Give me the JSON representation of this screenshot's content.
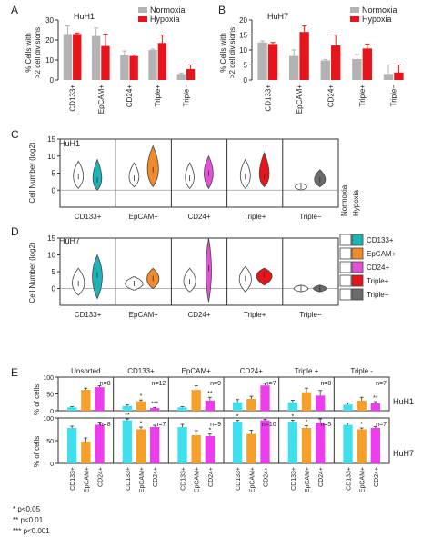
{
  "colors": {
    "normoxia": "#b3b3b3",
    "hypoxia": "#e8141b",
    "cd133": "#1fb3b5",
    "epcam": "#f08a2c",
    "cd24": "#e052d6",
    "triple_pos": "#e8141b",
    "triple_neg": "#6b6b6b",
    "cyan_bar": "#3fe0ee",
    "orange_bar": "#f6a02a",
    "magenta_bar": "#ee3dee"
  },
  "panels": {
    "A": {
      "letter": "A",
      "title": "HuH1",
      "ylabel_line1": "% Cells with",
      "ylabel_line2": ">2 cell divisions"
    },
    "B": {
      "letter": "B",
      "title": "HuH7",
      "ylabel_line1": "% Cells with",
      "ylabel_line2": ">2 cell divisions"
    },
    "C": {
      "letter": "C",
      "title": "HuH1",
      "ylabel": "Cell Number (log2)"
    },
    "D": {
      "letter": "D",
      "title": "HuH7",
      "ylabel": "Cell Number (log2)"
    },
    "E": {
      "letter": "E",
      "ylabel": "% of cells",
      "row_labels": [
        "HuH1",
        "HuH7"
      ]
    }
  },
  "legend_ab": [
    "Normoxia",
    "Hypoxia"
  ],
  "legend_cd": {
    "headers": [
      "Normoxia",
      "Hypoxia"
    ],
    "items": [
      "CD133+",
      "EpCAM+",
      "CD24+",
      "Triple+",
      "Triple−"
    ]
  },
  "footnotes": [
    "* p<0.05",
    "** p<0.01",
    "*** p<0.001"
  ],
  "chart_data": [
    {
      "id": "A",
      "type": "bar",
      "title": "HuH1",
      "ylabel": "% Cells with >2 cell divisions",
      "categories": [
        "CD133+",
        "EpCAM+",
        "CD24+",
        "Triple+",
        "Triple−"
      ],
      "ylim": [
        0,
        30
      ],
      "yticks": [
        0,
        10,
        20,
        30
      ],
      "series": [
        {
          "name": "Normoxia",
          "values": [
            23,
            22,
            12.5,
            15,
            3
          ],
          "err": [
            4,
            4,
            2,
            0.5,
            0.5
          ]
        },
        {
          "name": "Hypoxia",
          "values": [
            23,
            17,
            12,
            18.5,
            5.5
          ],
          "err": [
            0.5,
            6,
            0.5,
            4,
            2
          ]
        }
      ]
    },
    {
      "id": "B",
      "type": "bar",
      "title": "HuH7",
      "ylabel": "% Cells with >2 cell divisions",
      "categories": [
        "CD133+",
        "EpCAM+",
        "CD24+",
        "Triple+",
        "Triple−"
      ],
      "ylim": [
        0,
        20
      ],
      "yticks": [
        0,
        5,
        10,
        15,
        20
      ],
      "series": [
        {
          "name": "Normoxia",
          "values": [
            12.5,
            8,
            6.5,
            7,
            2
          ],
          "err": [
            0.5,
            2,
            0.3,
            1.5,
            3
          ]
        },
        {
          "name": "Hypoxia",
          "values": [
            12,
            16,
            11.5,
            10.5,
            2.5
          ],
          "err": [
            0.5,
            2,
            3.5,
            1.5,
            2.5
          ]
        }
      ]
    },
    {
      "id": "C",
      "type": "violin",
      "title": "HuH1",
      "ylabel": "Cell Number (log2)",
      "ylim": [
        -5,
        15
      ],
      "yticks": [
        0,
        5,
        10,
        15
      ],
      "categories": [
        "CD133+",
        "EpCAM+",
        "CD24+",
        "Triple+",
        "Triple−"
      ],
      "series": [
        {
          "name": "Normoxia",
          "violins": [
            [
              0.5,
              4,
              8.5,
              0.9
            ],
            [
              1,
              3.5,
              8,
              0.9
            ],
            [
              0.5,
              3.5,
              8,
              0.8
            ],
            [
              0.5,
              4,
              9,
              0.9
            ],
            [
              0,
              1,
              2,
              1.1
            ]
          ]
        },
        {
          "name": "Hypoxia",
          "violins": [
            [
              0,
              3,
              9,
              0.8
            ],
            [
              1,
              6,
              13,
              1.0
            ],
            [
              0.5,
              5,
              10,
              0.8
            ],
            [
              1,
              4,
              11,
              0.9
            ],
            [
              1,
              3,
              6,
              1.0
            ]
          ]
        }
      ]
    },
    {
      "id": "D",
      "type": "violin",
      "title": "HuH7",
      "ylabel": "Cell Number (log2)",
      "ylim": [
        -5,
        15
      ],
      "yticks": [
        0,
        5,
        10,
        15
      ],
      "categories": [
        "CD133+",
        "EpCAM+",
        "CD24+",
        "Triple+",
        "Triple−"
      ],
      "series": [
        {
          "name": "Normoxia",
          "violins": [
            [
              -2,
              1.5,
              6,
              1.1
            ],
            [
              -0.5,
              1.5,
              3.5,
              1.6
            ],
            [
              -1,
              2,
              6,
              1.1
            ],
            [
              -1,
              3,
              6.5,
              1.1
            ],
            [
              -1,
              0,
              1,
              1.3
            ]
          ]
        },
        {
          "name": "Hypoxia",
          "violins": [
            [
              -3,
              4,
              10,
              0.9
            ],
            [
              0,
              3,
              6,
              1.1
            ],
            [
              -4,
              6,
              15,
              0.5
            ],
            [
              1,
              4,
              6,
              1.4
            ],
            [
              -1,
              0,
              1,
              1.2
            ]
          ]
        }
      ]
    },
    {
      "id": "E-HuH1",
      "type": "bar",
      "row": "HuH1",
      "ylabel": "% of cells",
      "ylim": [
        0,
        100
      ],
      "yticks": [
        0,
        50,
        100
      ],
      "groups": [
        "Unsorted",
        "CD133+",
        "EpCAM+",
        "CD24+",
        "Triple +",
        "Triple -"
      ],
      "categories": [
        "CD133+",
        "EpCAM+",
        "CD24+"
      ],
      "n": [
        "n=8",
        "n=12",
        "n=9",
        "n=7",
        "n=8",
        "n=7"
      ],
      "values": [
        [
          10,
          62,
          70
        ],
        [
          14,
          28,
          8
        ],
        [
          10,
          62,
          30
        ],
        [
          25,
          35,
          75
        ],
        [
          25,
          55,
          45
        ],
        [
          18,
          30,
          22
        ]
      ],
      "err": [
        [
          2,
          5,
          4
        ],
        [
          3,
          4,
          2
        ],
        [
          2,
          12,
          10
        ],
        [
          8,
          8,
          6
        ],
        [
          6,
          12,
          15
        ],
        [
          5,
          10,
          5
        ]
      ],
      "stars": [
        [
          "",
          "",
          ""
        ],
        [
          "",
          "*",
          "***"
        ],
        [
          "",
          "",
          "**"
        ],
        [
          "",
          "",
          ""
        ],
        [
          "",
          "",
          ""
        ],
        [
          "",
          "",
          "**"
        ]
      ]
    },
    {
      "id": "E-HuH7",
      "type": "bar",
      "row": "HuH7",
      "ylabel": "% of cells",
      "ylim": [
        0,
        100
      ],
      "yticks": [
        0,
        50,
        100
      ],
      "groups": [
        "Unsorted",
        "CD133+",
        "EpCAM+",
        "CD24+",
        "Triple +",
        "Triple -"
      ],
      "categories": [
        "CD133+",
        "EpCAM+",
        "CD24+"
      ],
      "n": [
        "n=8",
        "n=7",
        "n=9",
        "n=10",
        "n=5",
        "n=7"
      ],
      "values": [
        [
          78,
          48,
          85
        ],
        [
          95,
          75,
          80
        ],
        [
          80,
          62,
          60
        ],
        [
          92,
          65,
          95
        ],
        [
          92,
          78,
          90
        ],
        [
          85,
          75,
          78
        ]
      ],
      "err": [
        [
          4,
          8,
          6
        ],
        [
          3,
          5,
          4
        ],
        [
          6,
          10,
          5
        ],
        [
          3,
          8,
          2
        ],
        [
          3,
          5,
          8
        ],
        [
          4,
          3,
          3
        ]
      ],
      "stars": [
        [
          "",
          "",
          ""
        ],
        [
          "**",
          "*",
          ""
        ],
        [
          "",
          "",
          "*"
        ],
        [
          "*",
          "",
          ""
        ],
        [
          "*",
          "*",
          ""
        ],
        [
          "",
          "*",
          ""
        ]
      ]
    }
  ]
}
